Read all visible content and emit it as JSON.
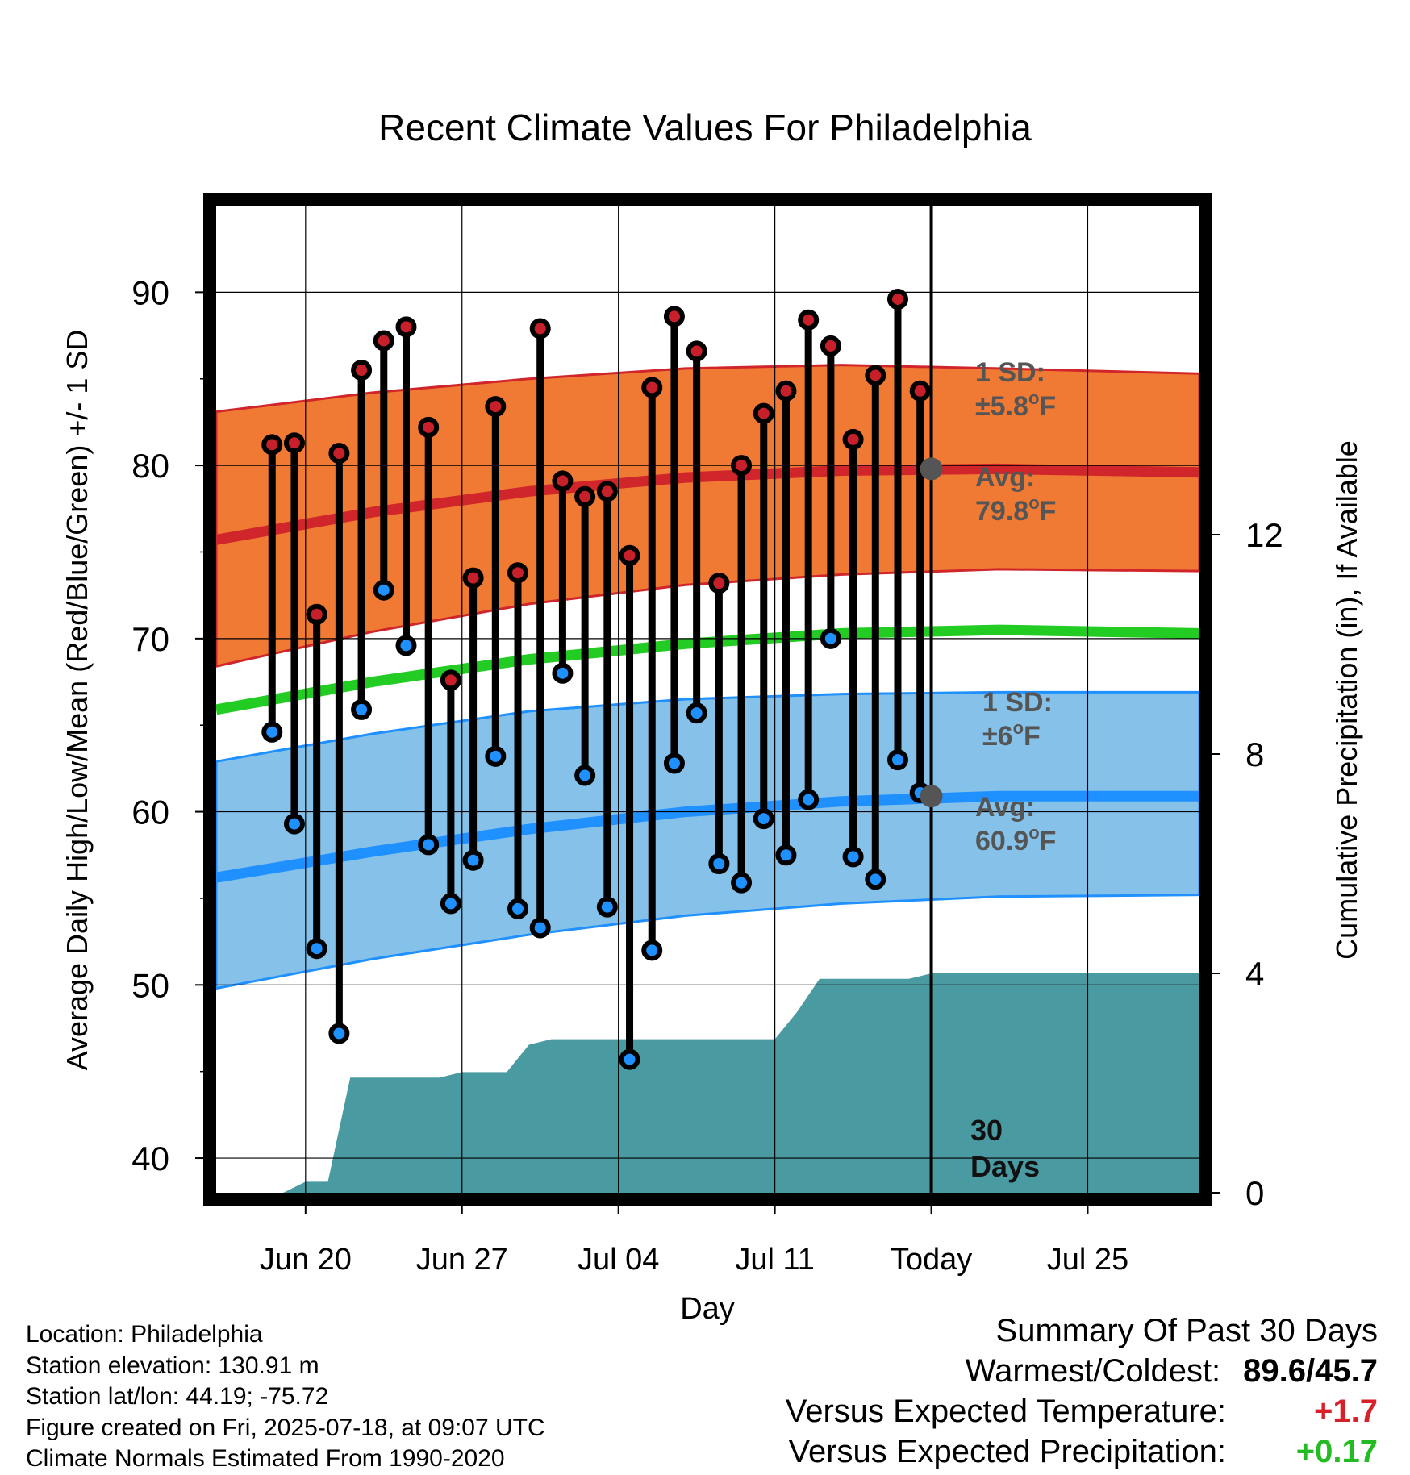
{
  "title": "Recent Climate Values For Philadelphia",
  "colors": {
    "high_dot": "#c8202a",
    "low_dot": "#1e90ff",
    "high_band": "#f07a33",
    "high_avg": "#d0252a",
    "low_band": "#85c1e9",
    "low_avg": "#1e90ff",
    "mean_line": "#22cc22",
    "precip": "#4a9aa2",
    "annotation": "#555555",
    "positive": "#d8202a",
    "precip_positive": "#22bb22"
  },
  "chart_data": {
    "type": "line",
    "title": "Recent Climate Values For Philadelphia",
    "xlabel": "Day",
    "ylabel": "Average Daily High/Low/Mean (Red/Blue/Green) +/- 1 SD",
    "y2label": "Cumulative Precipitation (in), If Available",
    "ylim": [
      38,
      95
    ],
    "y2lim": [
      0,
      18
    ],
    "yticks": [
      40,
      50,
      60,
      70,
      80,
      90
    ],
    "y2ticks": [
      0,
      4,
      8,
      12
    ],
    "xlim": [
      "2025-06-16",
      "2025-07-30"
    ],
    "xtick_labels": [
      {
        "date": "2025-06-20",
        "label": "Jun 20"
      },
      {
        "date": "2025-06-27",
        "label": "Jun 27"
      },
      {
        "date": "2025-07-04",
        "label": "Jul 04"
      },
      {
        "date": "2025-07-11",
        "label": "Jul 11"
      },
      {
        "date": "2025-07-18",
        "label": "Today"
      },
      {
        "date": "2025-07-25",
        "label": "Jul 25"
      }
    ],
    "today": "2025-07-18",
    "grid": true,
    "daily": {
      "dates": [
        "2025-06-18",
        "2025-06-19",
        "2025-06-20",
        "2025-06-21",
        "2025-06-22",
        "2025-06-23",
        "2025-06-24",
        "2025-06-25",
        "2025-06-26",
        "2025-06-27",
        "2025-06-28",
        "2025-06-29",
        "2025-06-30",
        "2025-07-01",
        "2025-07-02",
        "2025-07-03",
        "2025-07-04",
        "2025-07-05",
        "2025-07-06",
        "2025-07-07",
        "2025-07-08",
        "2025-07-09",
        "2025-07-10",
        "2025-07-11",
        "2025-07-12",
        "2025-07-13",
        "2025-07-14",
        "2025-07-15",
        "2025-07-16",
        "2025-07-17"
      ],
      "highs": [
        81.2,
        81.3,
        71.4,
        80.7,
        85.5,
        87.2,
        88.0,
        82.2,
        67.6,
        73.5,
        83.4,
        73.8,
        87.9,
        79.1,
        78.2,
        78.5,
        74.8,
        84.5,
        88.6,
        86.6,
        73.2,
        80.0,
        83.0,
        84.3,
        88.4,
        86.9,
        81.5,
        85.2,
        89.6,
        84.3
      ],
      "lows": [
        64.6,
        59.3,
        52.1,
        47.2,
        65.9,
        72.8,
        69.6,
        58.1,
        54.7,
        57.2,
        63.2,
        54.4,
        53.3,
        68.0,
        62.1,
        54.5,
        45.7,
        52.0,
        62.8,
        65.7,
        57.0,
        55.9,
        59.6,
        57.5,
        60.7,
        70.0,
        57.4,
        56.1,
        63.0,
        61.1
      ]
    },
    "normals": {
      "dates": [
        "2025-06-16",
        "2025-06-23",
        "2025-06-30",
        "2025-07-07",
        "2025-07-14",
        "2025-07-21",
        "2025-07-30"
      ],
      "high_avg": [
        75.7,
        77.3,
        78.5,
        79.3,
        79.7,
        79.8,
        79.6
      ],
      "high_upper": [
        83.1,
        84.2,
        85.0,
        85.6,
        85.8,
        85.6,
        85.3
      ],
      "high_lower": [
        68.4,
        70.4,
        72.0,
        73.1,
        73.7,
        74.0,
        73.9
      ],
      "mean_avg": [
        65.9,
        67.5,
        68.8,
        69.7,
        70.3,
        70.5,
        70.3
      ],
      "low_avg": [
        56.2,
        57.7,
        59.0,
        60.0,
        60.6,
        60.9,
        60.9
      ],
      "low_upper": [
        62.9,
        64.5,
        65.8,
        66.5,
        66.8,
        66.9,
        66.9
      ],
      "low_lower": [
        49.8,
        51.5,
        52.9,
        54.0,
        54.7,
        55.1,
        55.2
      ]
    },
    "precip": {
      "dates": [
        "2025-06-16",
        "2025-06-19",
        "2025-06-20",
        "2025-06-21",
        "2025-06-22",
        "2025-06-26",
        "2025-06-27",
        "2025-06-29",
        "2025-06-30",
        "2025-07-01",
        "2025-07-11",
        "2025-07-12",
        "2025-07-13",
        "2025-07-17",
        "2025-07-18",
        "2025-07-30"
      ],
      "values": [
        0.0,
        0.0,
        0.2,
        0.2,
        2.1,
        2.1,
        2.2,
        2.2,
        2.7,
        2.8,
        2.8,
        3.3,
        3.9,
        3.9,
        4.0,
        4.0
      ]
    },
    "annotations": {
      "high_sd": {
        "line1": "1 SD:",
        "line2": "±5.8",
        "unit": "F"
      },
      "high_avg": {
        "line1": "Avg:",
        "line2": "79.8",
        "unit": "F"
      },
      "low_sd": {
        "line1": "1 SD:",
        "line2": "±6",
        "unit": "F"
      },
      "low_avg": {
        "line1": "Avg:",
        "line2": "60.9",
        "unit": "F"
      },
      "days": {
        "line1": "30",
        "line2": "Days"
      }
    }
  },
  "footer": {
    "location": "Location: Philadelphia",
    "elevation": "Station elevation: 130.91 m",
    "latlon": "Station lat/lon: 44.19; -75.72",
    "created": "Figure created on Fri, 2025-07-18, at 09:07 UTC",
    "normals": "Climate Normals Estimated From 1990-2020"
  },
  "summary": {
    "heading": "Summary Of Past 30 Days",
    "warmest_label": "Warmest/Coldest:",
    "warmest_value": "89.6/45.7",
    "temp_label": "Versus Expected Temperature:",
    "temp_value": "+1.7",
    "precip_label": "Versus Expected Precipitation:",
    "precip_value": "+0.17"
  }
}
